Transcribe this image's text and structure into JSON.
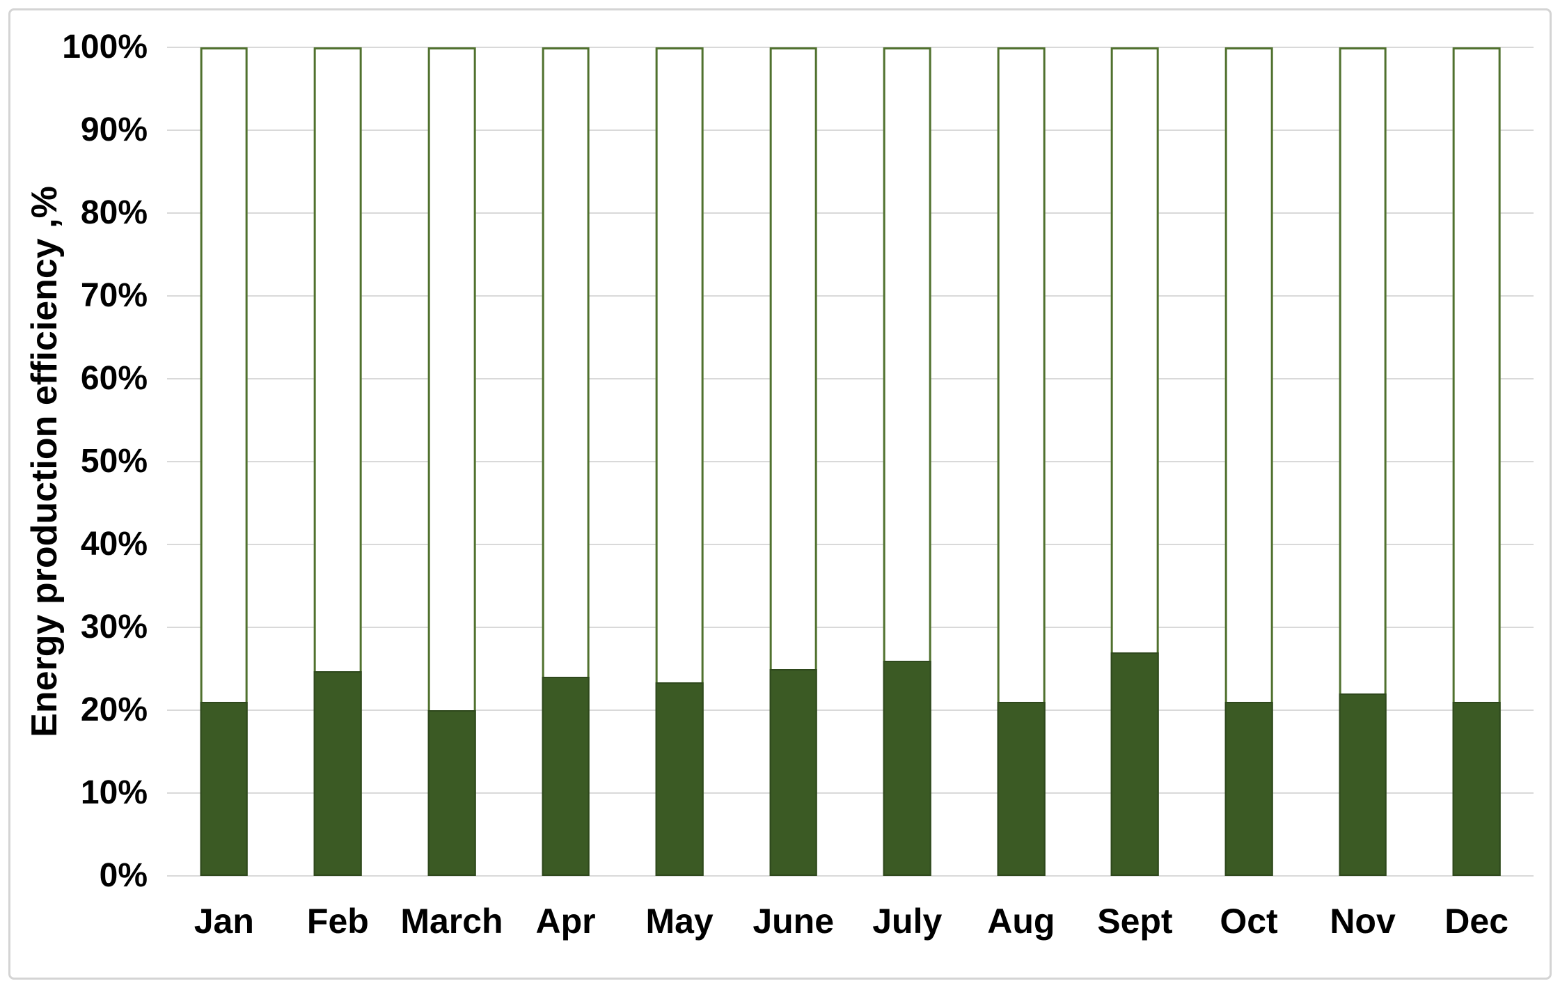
{
  "chart_data": {
    "type": "bar",
    "subtype": "overlapped-columns-outline-plus-filled",
    "title": "",
    "xlabel": "",
    "ylabel": "Energy production efficiency ,%",
    "categories": [
      "Jan",
      "Feb",
      "March",
      "Apr",
      "May",
      "June",
      "July",
      "Aug",
      "Sept",
      "Oct",
      "Nov",
      "Dec"
    ],
    "series": [
      {
        "name": "capacity-outline",
        "style": "outlined-white",
        "values": [
          100,
          100,
          100,
          100,
          100,
          100,
          100,
          100,
          100,
          100,
          100,
          100
        ]
      },
      {
        "name": "energy-production-efficiency",
        "style": "filled-dark-green",
        "values": [
          21,
          24.7,
          20,
          24,
          23.4,
          25,
          26,
          21,
          27,
          21,
          22,
          21
        ]
      }
    ],
    "ylim": [
      0,
      100
    ],
    "y_tick_step": 10,
    "y_ticks": [
      "0%",
      "10%",
      "20%",
      "30%",
      "40%",
      "50%",
      "60%",
      "70%",
      "80%",
      "90%",
      "100%"
    ],
    "grid": "horizontal",
    "legend": "none"
  },
  "colors": {
    "bar_fill": "#3b5a24",
    "bar_fill_border": "#2e481c",
    "bar_outline": "#50712e",
    "gridline": "#d9d9d9",
    "frame_border": "#d4d4d4",
    "text": "#000000",
    "background": "#ffffff"
  }
}
